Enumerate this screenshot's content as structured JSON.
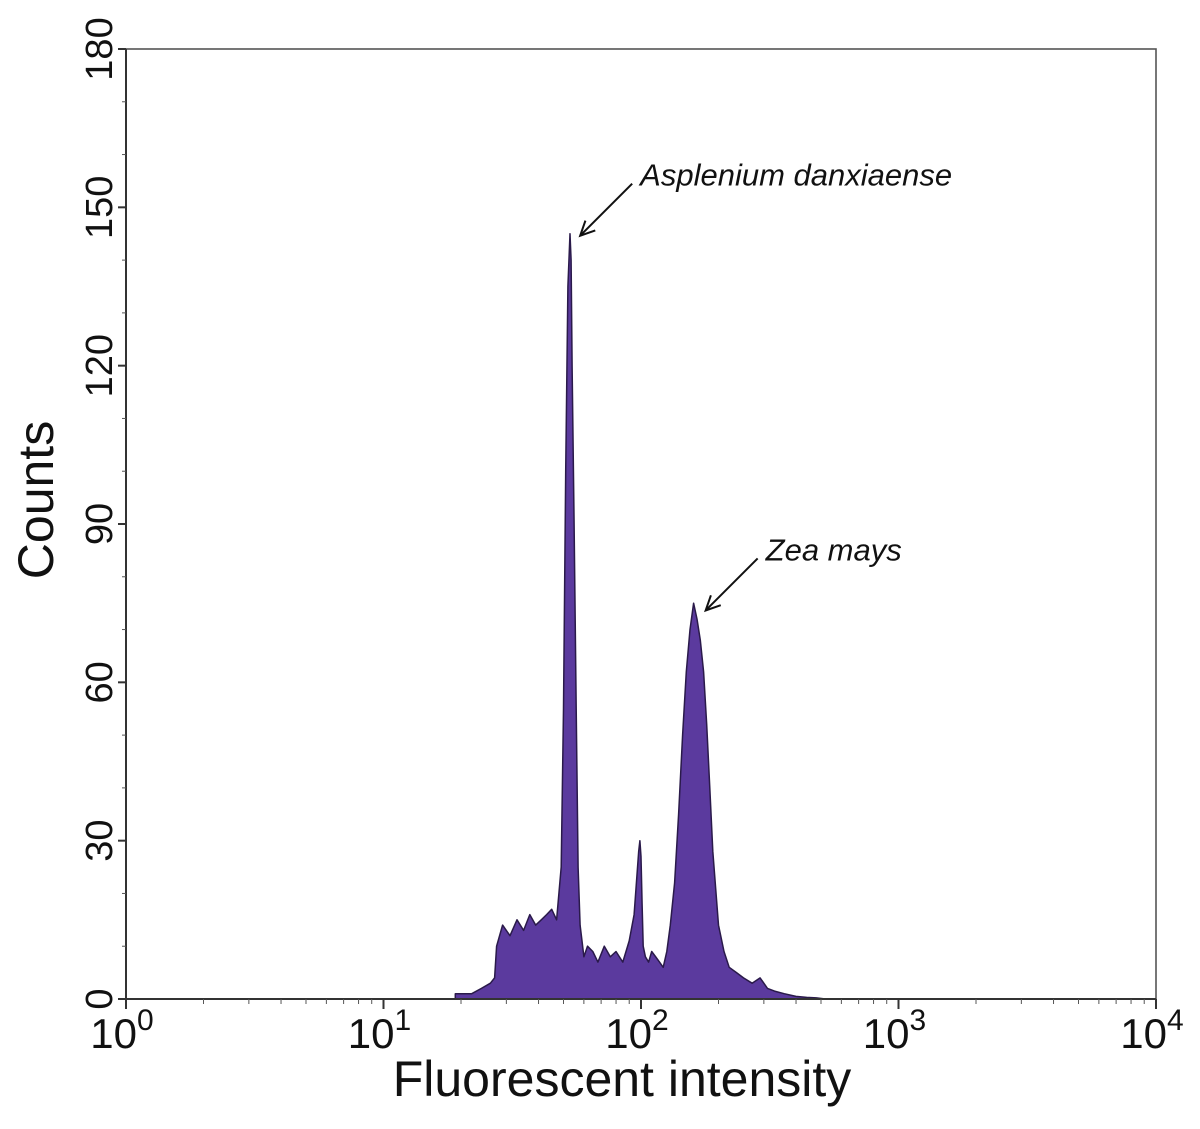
{
  "chart_data": {
    "type": "area",
    "xlabel": "Fluorescent intensity",
    "ylabel": "Counts",
    "xscale": "log",
    "xlim": [
      1,
      10000
    ],
    "ylim": [
      0,
      180
    ],
    "x_ticks": [
      {
        "value": 1,
        "base": "10",
        "exp": "0"
      },
      {
        "value": 10,
        "base": "10",
        "exp": "1"
      },
      {
        "value": 100,
        "base": "10",
        "exp": "2"
      },
      {
        "value": 1000,
        "base": "10",
        "exp": "3"
      },
      {
        "value": 10000,
        "base": "10",
        "exp": "4"
      }
    ],
    "y_ticks": [
      0,
      30,
      60,
      90,
      120,
      150,
      180
    ],
    "grid": false,
    "fill_color": "#5b3a9e",
    "outline_color": "#2a1a4a",
    "series": [
      {
        "x": [
          19,
          22,
          24,
          26,
          27,
          27.5,
          29,
          31,
          33,
          35,
          37,
          39,
          41,
          43,
          45,
          47,
          49,
          50,
          51,
          52,
          53,
          53.5,
          54,
          55,
          56,
          57,
          58,
          59,
          60,
          62,
          65,
          68,
          72,
          76,
          80,
          85,
          90,
          94,
          96,
          98,
          99,
          100,
          101,
          102,
          104,
          107,
          110,
          114,
          118,
          122,
          126,
          130,
          135,
          140,
          145,
          150,
          155,
          160,
          165,
          170,
          175,
          180,
          185,
          190,
          200,
          210,
          220,
          235,
          250,
          270,
          290,
          310,
          330,
          360,
          400,
          440,
          480,
          520
        ],
        "y": [
          1,
          1,
          2,
          3,
          4,
          10,
          14,
          12,
          15,
          13,
          16,
          14,
          15,
          16,
          17,
          15,
          25,
          55,
          100,
          135,
          145,
          140,
          120,
          90,
          55,
          25,
          14,
          11,
          8,
          10,
          9,
          7,
          10,
          8,
          9,
          7,
          11,
          16,
          22,
          28,
          30,
          27,
          18,
          10,
          8,
          7,
          9,
          8,
          7,
          6,
          9,
          14,
          22,
          35,
          50,
          62,
          70,
          75,
          72,
          68,
          62,
          52,
          40,
          28,
          14,
          9,
          6,
          5,
          4,
          3,
          4,
          2,
          1.5,
          1,
          0.5,
          0.3,
          0.2,
          0
        ]
      }
    ],
    "annotations": [
      {
        "text": "Asplenium danxiaense",
        "target_x": 56,
        "target_y": 145
      },
      {
        "text": "Zea mays",
        "target_x": 172,
        "target_y": 74
      }
    ]
  }
}
